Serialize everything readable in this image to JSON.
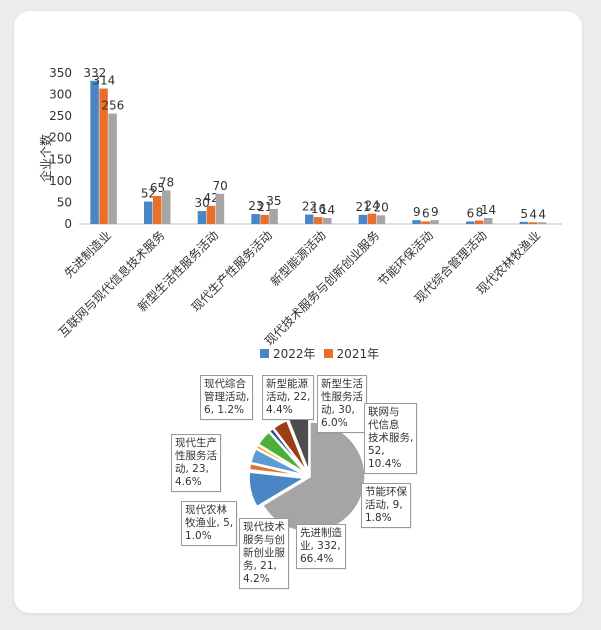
{
  "chart_data": [
    {
      "type": "bar",
      "ylabel": "企业个数",
      "ylim": [
        0,
        350
      ],
      "yticks": [
        0,
        50,
        100,
        150,
        200,
        250,
        300,
        350
      ],
      "categories": [
        "先进制造业",
        "互联网与现代信息技术服务",
        "新型生活性服务活动",
        "现代生产性服务活动",
        "新型能源活动",
        "现代技术服务与创新创业服务",
        "节能环保活动",
        "现代综合管理活动",
        "现代农林牧渔业"
      ],
      "series": [
        {
          "name": "2022年",
          "color": "#4a86c6",
          "values": [
            332,
            52,
            30,
            23,
            22,
            21,
            9,
            6,
            5
          ]
        },
        {
          "name": "2021年",
          "color": "#e8702a",
          "values": [
            314,
            65,
            42,
            21,
            16,
            24,
            6,
            8,
            4
          ]
        },
        {
          "name": "",
          "color": "#a5a5a5",
          "values": [
            256,
            78,
            70,
            35,
            14,
            20,
            9,
            14,
            4
          ]
        }
      ],
      "grid": false,
      "legend": "bottom"
    },
    {
      "type": "pie",
      "slices": [
        {
          "name": "先进制造业",
          "value": 332,
          "percent": "66.4%",
          "color": "#a5a5a5"
        },
        {
          "name": "互联网与现代信息技术服务",
          "value": 52,
          "percent": "10.4%",
          "color": "#4a86c6"
        },
        {
          "name": "节能环保活动",
          "value": 9,
          "percent": "1.8%",
          "color": "#e8702a"
        },
        {
          "name": "现代技术服务与创新创业服务",
          "value": 21,
          "percent": "4.2%",
          "color": "#5b9bd5"
        },
        {
          "name": "现代农林牧渔业",
          "value": 5,
          "percent": "1.0%",
          "color": "#f3b20e"
        },
        {
          "name": "现代生产性服务活动",
          "value": 23,
          "percent": "4.6%",
          "color": "#4caf3a"
        },
        {
          "name": "现代综合管理活动",
          "value": 6,
          "percent": "1.2%",
          "color": "#2a4f8c"
        },
        {
          "name": "新型能源活动",
          "value": 22,
          "percent": "4.4%",
          "color": "#9a3f12"
        },
        {
          "name": "新型生活性服务活动",
          "value": 30,
          "percent": "6.0%",
          "color": "#4d4d4d"
        }
      ]
    }
  ],
  "pie_labels": [
    {
      "text": "现代综合\n管理活动,\n6, 1.2%"
    },
    {
      "text": "新型能源\n活动, 22,\n4.4%"
    },
    {
      "text": "新型生活\n性服务活\n动, 30,\n6.0%"
    },
    {
      "text": "联网与\n代信息\n技术服务,\n52,\n10.4%"
    },
    {
      "text": "现代生产\n性服务活\n动, 23,\n4.6%"
    },
    {
      "text": "节能环保\n活动, 9,\n1.8%"
    },
    {
      "text": "现代农林\n牧渔业, 5,\n1.0%"
    },
    {
      "text": "现代技术\n服务与创\n新创业服\n务, 21,\n4.2%"
    },
    {
      "text": "先进制造\n业, 332,\n66.4%"
    }
  ]
}
